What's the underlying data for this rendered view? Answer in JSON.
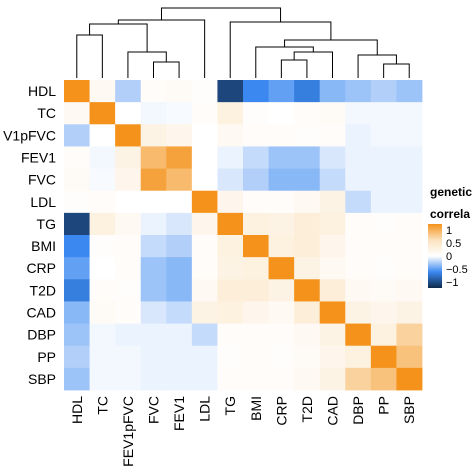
{
  "chart_data": {
    "type": "heatmap",
    "title": "",
    "legend": {
      "title_lines": [
        "genetic",
        "correla"
      ],
      "placement": "right",
      "ticks": [
        1,
        0.5,
        0,
        -0.5,
        -1
      ],
      "tick_labels": [
        "1",
        "0.5",
        "0",
        "−0.5",
        "−1"
      ],
      "colors": [
        "#f4921b",
        "#fbe2bf",
        "#ffffff",
        "#3b88f0",
        "#0e2a4a"
      ]
    },
    "row_labels": [
      "HDL",
      "TC",
      "V1pFVC",
      "FEV1",
      "FVC",
      "LDL",
      "TG",
      "BMI",
      "CRP",
      "T2D",
      "CAD",
      "DBP",
      "PP",
      "SBP"
    ],
    "col_labels": [
      "HDL",
      "TC",
      "FEV1pFVC",
      "FVC",
      "FEV1",
      "LDL",
      "TG",
      "BMI",
      "CRP",
      "T2D",
      "CAD",
      "DBP",
      "PP",
      "SBP"
    ],
    "values": [
      [
        1.0,
        0.1,
        -0.2,
        0.05,
        0.08,
        0.03,
        -0.85,
        -0.5,
        -0.4,
        -0.55,
        -0.3,
        -0.25,
        -0.2,
        -0.25
      ],
      [
        0.1,
        1.0,
        0.0,
        -0.03,
        -0.02,
        0.05,
        0.25,
        0.03,
        0.0,
        0.05,
        0.08,
        -0.03,
        -0.03,
        -0.03
      ],
      [
        -0.2,
        0.0,
        1.0,
        0.2,
        0.15,
        0.0,
        0.1,
        0.05,
        0.05,
        0.03,
        0.05,
        -0.05,
        -0.03,
        -0.03
      ],
      [
        0.05,
        -0.03,
        0.2,
        0.75,
        0.9,
        0.0,
        -0.05,
        -0.15,
        -0.25,
        -0.25,
        -0.1,
        -0.05,
        -0.05,
        -0.05
      ],
      [
        0.08,
        -0.02,
        0.15,
        0.9,
        0.75,
        0.0,
        -0.1,
        -0.2,
        -0.3,
        -0.3,
        -0.15,
        -0.05,
        -0.05,
        -0.05
      ],
      [
        0.03,
        0.05,
        0.0,
        0.0,
        0.0,
        1.0,
        0.15,
        0.05,
        0.05,
        0.1,
        0.2,
        -0.15,
        -0.05,
        -0.05
      ],
      [
        -0.85,
        0.25,
        0.1,
        -0.05,
        -0.1,
        0.15,
        1.0,
        0.25,
        0.2,
        0.3,
        0.25,
        0.05,
        0.03,
        0.05
      ],
      [
        -0.5,
        0.03,
        0.05,
        -0.15,
        -0.2,
        0.05,
        0.25,
        1.0,
        0.25,
        0.3,
        0.15,
        0.05,
        0.05,
        0.05
      ],
      [
        -0.4,
        0.0,
        0.05,
        -0.25,
        -0.3,
        0.05,
        0.2,
        0.25,
        1.0,
        0.2,
        0.1,
        0.05,
        0.03,
        0.05
      ],
      [
        -0.55,
        0.05,
        0.03,
        -0.25,
        -0.3,
        0.1,
        0.3,
        0.3,
        0.2,
        1.0,
        0.3,
        0.1,
        0.08,
        0.1
      ],
      [
        -0.3,
        0.08,
        0.05,
        -0.1,
        -0.15,
        0.2,
        0.25,
        0.15,
        0.1,
        0.3,
        1.0,
        0.2,
        0.15,
        0.2
      ],
      [
        -0.25,
        -0.03,
        -0.05,
        -0.05,
        -0.05,
        -0.15,
        0.05,
        0.05,
        0.05,
        0.1,
        0.2,
        1.0,
        0.25,
        0.6
      ],
      [
        -0.2,
        -0.03,
        -0.03,
        -0.05,
        -0.05,
        -0.05,
        0.03,
        0.05,
        0.03,
        0.08,
        0.15,
        0.25,
        1.0,
        0.7
      ],
      [
        -0.25,
        -0.03,
        -0.03,
        -0.05,
        -0.05,
        -0.05,
        0.05,
        0.05,
        0.05,
        0.1,
        0.2,
        0.6,
        0.7,
        1.0
      ]
    ],
    "dendrogram": "column clustering tree shown above heatmap"
  }
}
